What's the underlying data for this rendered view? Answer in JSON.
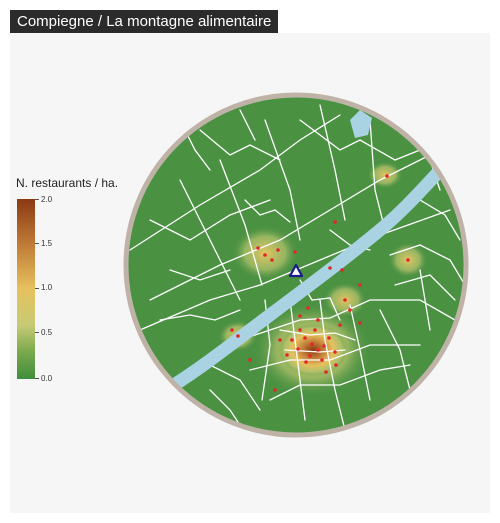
{
  "title": "Compiegne / La montagne alimentaire",
  "legend": {
    "title": "N. restaurants / ha.",
    "ticks": [
      "2.0",
      "1.5",
      "1.0",
      "0.5",
      "0.0"
    ],
    "colors": {
      "high": "#8a3a12",
      "mid": "#e6c15e",
      "low": "#3f8f3c"
    }
  },
  "map": {
    "background_color": "#4a9142",
    "river_color": "#a9d3e2",
    "street_color": "#ffffff",
    "border_color": "#bfb3a8",
    "restaurant_color": "#e3262b",
    "marker": {
      "icon": "triangle-icon",
      "color": "#1a1a8c"
    }
  }
}
